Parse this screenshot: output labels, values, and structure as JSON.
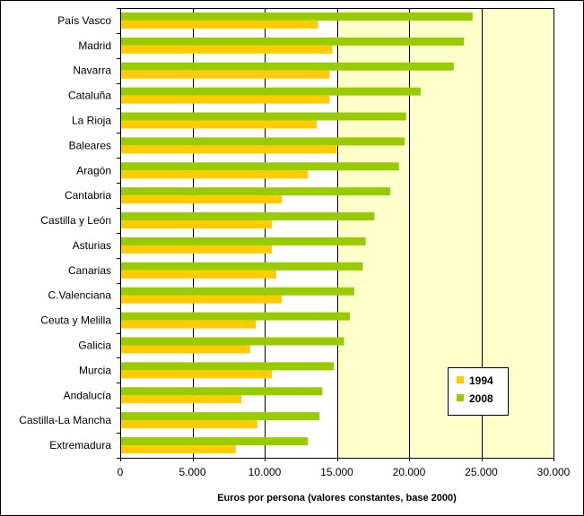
{
  "chart_data": {
    "type": "bar",
    "orientation": "horizontal",
    "title": "",
    "xlabel": "Euros por persona (valores constantes, base 2000)",
    "ylabel": "",
    "xlim": [
      0,
      30000
    ],
    "x_ticks": [
      0,
      5000,
      10000,
      15000,
      20000,
      25000,
      30000
    ],
    "x_tick_labels": [
      "0",
      "5.000",
      "10.000",
      "15.000",
      "20.000",
      "25.000",
      "30.000"
    ],
    "grid": "vertical major lines",
    "legend_position": "bottom-right",
    "categories": [
      "País Vasco",
      "Madrid",
      "Navarra",
      "Cataluña",
      "La Rioja",
      "Baleares",
      "Aragón",
      "Cantabria",
      "Castilla y León",
      "Asturias",
      "Canarias",
      "C.Valenciana",
      "Ceuta y Melilla",
      "Galicia",
      "Murcia",
      "Andalucía",
      "Castilla-La Mancha",
      "Extremadura"
    ],
    "series": [
      {
        "name": "1994",
        "color": "#FFCC00",
        "values": [
          13700,
          14700,
          14500,
          14500,
          13600,
          15000,
          13000,
          11200,
          10500,
          10500,
          10800,
          11200,
          9400,
          9000,
          10500,
          8400,
          9500,
          8000
        ]
      },
      {
        "name": "2008",
        "color": "#99CC00",
        "values": [
          24400,
          23800,
          23100,
          20800,
          19800,
          19700,
          19300,
          18700,
          17600,
          17000,
          16800,
          16200,
          15900,
          15500,
          14800,
          14000,
          13800,
          13000
        ]
      }
    ]
  },
  "colors": {
    "plot_background": "#FFFFCC",
    "gridline": "#000000"
  }
}
